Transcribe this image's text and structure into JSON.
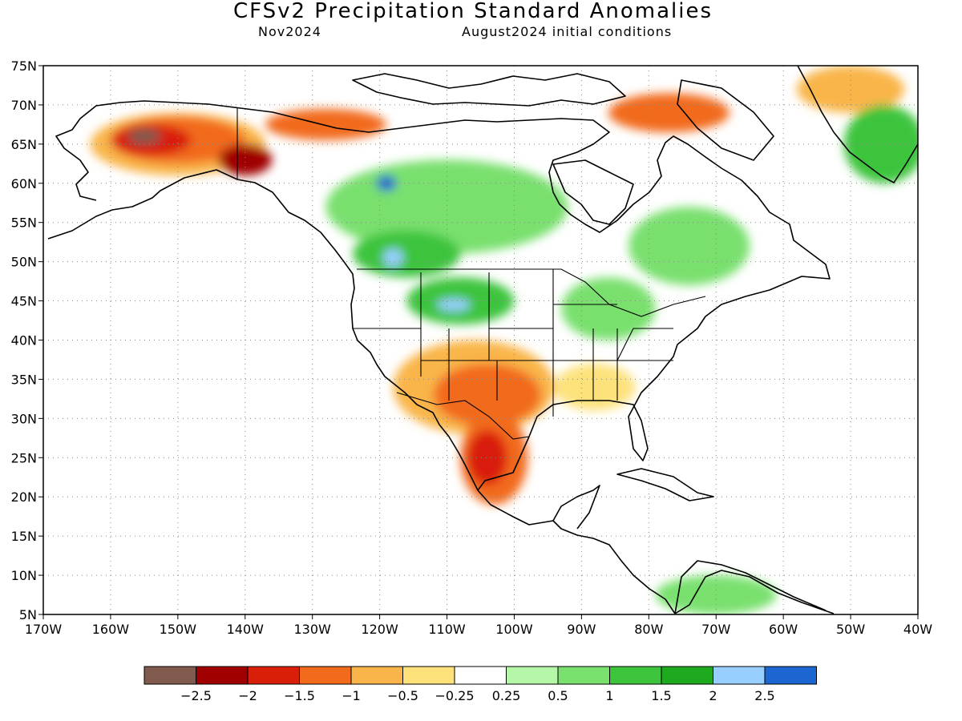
{
  "title": "CFSv2 Precipitation Standard Anomalies",
  "subtitle_left": "Nov2024",
  "subtitle_right": "August2024 initial conditions",
  "map": {
    "lon_range": [
      -170,
      -40
    ],
    "lat_range": [
      5,
      75
    ],
    "lat_ticks": [
      {
        "value": 75,
        "label": "75N"
      },
      {
        "value": 70,
        "label": "70N"
      },
      {
        "value": 65,
        "label": "65N"
      },
      {
        "value": 60,
        "label": "60N"
      },
      {
        "value": 55,
        "label": "55N"
      },
      {
        "value": 50,
        "label": "50N"
      },
      {
        "value": 45,
        "label": "45N"
      },
      {
        "value": 40,
        "label": "40N"
      },
      {
        "value": 35,
        "label": "35N"
      },
      {
        "value": 30,
        "label": "30N"
      },
      {
        "value": 25,
        "label": "25N"
      },
      {
        "value": 20,
        "label": "20N"
      },
      {
        "value": 15,
        "label": "15N"
      },
      {
        "value": 10,
        "label": "10N"
      },
      {
        "value": 5,
        "label": "5N"
      }
    ],
    "lon_ticks": [
      {
        "value": -170,
        "label": "170W"
      },
      {
        "value": -160,
        "label": "160W"
      },
      {
        "value": -150,
        "label": "150W"
      },
      {
        "value": -140,
        "label": "140W"
      },
      {
        "value": -130,
        "label": "130W"
      },
      {
        "value": -120,
        "label": "120W"
      },
      {
        "value": -110,
        "label": "110W"
      },
      {
        "value": -100,
        "label": "100W"
      },
      {
        "value": -90,
        "label": "90W"
      },
      {
        "value": -80,
        "label": "80W"
      },
      {
        "value": -70,
        "label": "70W"
      },
      {
        "value": -60,
        "label": "60W"
      },
      {
        "value": -50,
        "label": "50W"
      },
      {
        "value": -40,
        "label": "40W"
      }
    ],
    "gridlines": "dotted"
  },
  "legend": {
    "colors": [
      "#7f5a4d",
      "#a00000",
      "#d91e0a",
      "#f26a1b",
      "#f9b54a",
      "#fde27c",
      "#ffffff",
      "#b6f6a8",
      "#79e06e",
      "#3dc43d",
      "#1ea91e",
      "#98cfff",
      "#1c66d1"
    ],
    "labels": [
      "-2.5",
      "-2",
      "-1.5",
      "-1",
      "-0.5",
      "-0.25",
      "0.25",
      "0.5",
      "1",
      "1.5",
      "2",
      "2.5"
    ]
  },
  "anomaly_regions": [
    {
      "name": "alaska-dry",
      "lon": -150,
      "lat": 65,
      "rx": 13,
      "ry": 4,
      "color": "#f9b54a"
    },
    {
      "name": "alaska-dry-core",
      "lon": -150,
      "lat": 65.5,
      "rx": 10,
      "ry": 3,
      "color": "#f26a1b"
    },
    {
      "name": "alaska-dry-strong",
      "lon": -154,
      "lat": 65.5,
      "rx": 6,
      "ry": 2,
      "color": "#d91e0a"
    },
    {
      "name": "alaska-dry-max",
      "lon": -155,
      "lat": 66,
      "rx": 2.5,
      "ry": 1,
      "color": "#7f5a4d"
    },
    {
      "name": "yukon-dry",
      "lon": -140,
      "lat": 63,
      "rx": 4,
      "ry": 2,
      "color": "#a00000"
    },
    {
      "name": "arctic-coast-dry",
      "lon": -128,
      "lat": 67.5,
      "rx": 9,
      "ry": 2,
      "color": "#f26a1b"
    },
    {
      "name": "canada-wet",
      "lon": -110,
      "lat": 57,
      "rx": 18,
      "ry": 6,
      "color": "#79e06e"
    },
    {
      "name": "canada-wet-core",
      "lon": -116,
      "lat": 51,
      "rx": 8,
      "ry": 3,
      "color": "#3dc43d"
    },
    {
      "name": "canada-wet-blue",
      "lon": -118,
      "lat": 50.5,
      "rx": 1.5,
      "ry": 1.2,
      "color": "#98cfff"
    },
    {
      "name": "nwt-wet-blue",
      "lon": -119,
      "lat": 60,
      "rx": 1.5,
      "ry": 1,
      "color": "#1c66d1"
    },
    {
      "name": "plains-wet",
      "lon": -108,
      "lat": 45,
      "rx": 8,
      "ry": 3,
      "color": "#3dc43d"
    },
    {
      "name": "montana-wet-blue",
      "lon": -109,
      "lat": 44.5,
      "rx": 2.5,
      "ry": 0.8,
      "color": "#98cfff"
    },
    {
      "name": "great-lakes-wet",
      "lon": -86,
      "lat": 44,
      "rx": 7,
      "ry": 4,
      "color": "#79e06e"
    },
    {
      "name": "quebec-wet",
      "lon": -74,
      "lat": 52,
      "rx": 9,
      "ry": 5,
      "color": "#79e06e"
    },
    {
      "name": "southwest-dry",
      "lon": -106,
      "lat": 34,
      "rx": 12,
      "ry": 6,
      "color": "#f9b54a"
    },
    {
      "name": "southwest-dry-core",
      "lon": -104,
      "lat": 33,
      "rx": 8,
      "ry": 4,
      "color": "#f26a1b"
    },
    {
      "name": "mexico-dry",
      "lon": -103,
      "lat": 25,
      "rx": 5,
      "ry": 6,
      "color": "#f26a1b"
    },
    {
      "name": "mexico-dry-core",
      "lon": -104,
      "lat": 25,
      "rx": 3,
      "ry": 3.5,
      "color": "#d91e0a"
    },
    {
      "name": "southeast-dry",
      "lon": -88,
      "lat": 34,
      "rx": 6,
      "ry": 3,
      "color": "#fde27c"
    },
    {
      "name": "greenland-dry",
      "lon": -50,
      "lat": 72,
      "rx": 8,
      "ry": 3,
      "color": "#f9b54a"
    },
    {
      "name": "greenland-wet",
      "lon": -45,
      "lat": 65,
      "rx": 6,
      "ry": 5,
      "color": "#3dc43d"
    },
    {
      "name": "baffin-dry",
      "lon": -77,
      "lat": 69,
      "rx": 9,
      "ry": 2.5,
      "color": "#f26a1b"
    },
    {
      "name": "venezuela-wet",
      "lon": -70,
      "lat": 7.5,
      "rx": 9,
      "ry": 2.5,
      "color": "#79e06e"
    }
  ]
}
